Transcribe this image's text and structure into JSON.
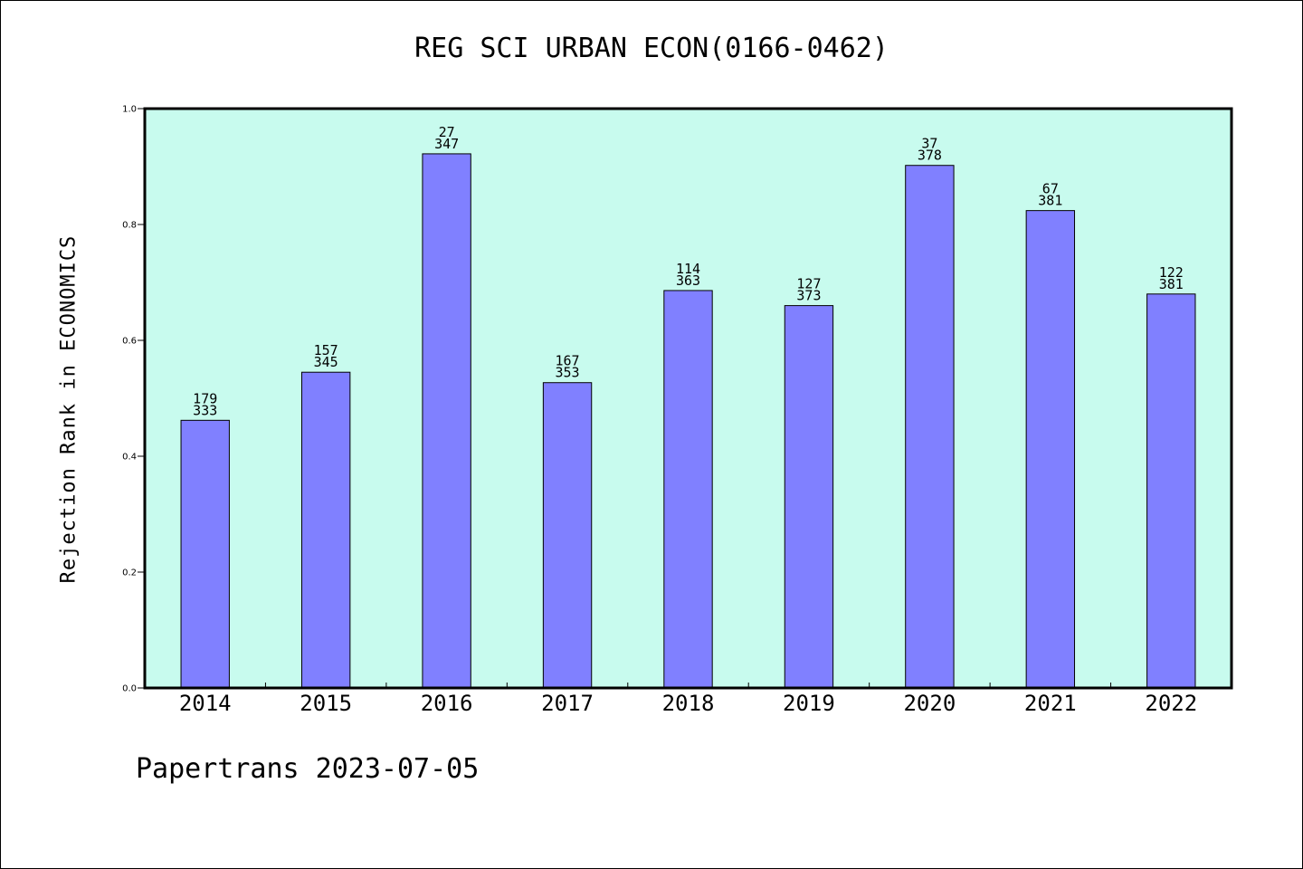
{
  "colors": {
    "plot_background": "#c8fbee",
    "bar_fill": "#8080ff",
    "bar_stroke": "#000000",
    "axis": "#000000"
  },
  "chart_data": {
    "type": "bar",
    "title": "REG SCI URBAN ECON(0166-0462)",
    "xlabel": "",
    "ylabel": "Rejection Rank in ECONOMICS",
    "ylim": [
      0,
      1.0
    ],
    "yticks": [
      "0.0",
      "0.2",
      "0.4",
      "0.6",
      "0.8",
      "1.0"
    ],
    "categories": [
      "2014",
      "2015",
      "2016",
      "2017",
      "2018",
      "2019",
      "2020",
      "2021",
      "2022"
    ],
    "values": [
      0.462,
      0.545,
      0.922,
      0.527,
      0.686,
      0.66,
      0.902,
      0.824,
      0.68
    ],
    "rank_labels": [
      "179",
      "157",
      "27",
      "167",
      "114",
      "127",
      "37",
      "67",
      "122"
    ],
    "total_labels": [
      "333",
      "345",
      "347",
      "353",
      "363",
      "373",
      "378",
      "381",
      "381"
    ],
    "grid": false,
    "legend": "none"
  },
  "footer": {
    "text": "Papertrans 2023-07-05"
  }
}
